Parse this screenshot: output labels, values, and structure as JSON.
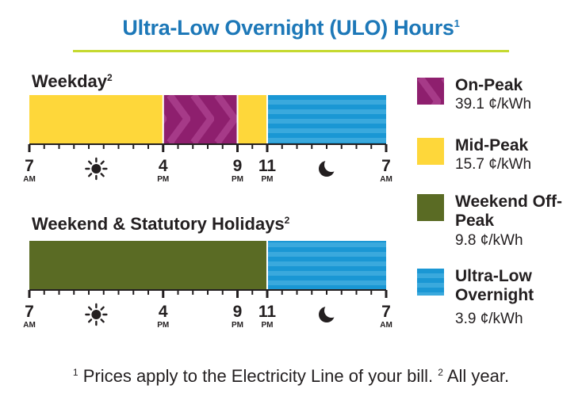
{
  "title": "Ultra-Low Overnight (ULO) Hours",
  "title_note": "1",
  "colors": {
    "on_peak": "#8e1f6e",
    "mid_peak": "#fed73a",
    "weekend_off_peak": "#5a6b24",
    "ultra_low": "#1a97d4",
    "title": "#1d78b8",
    "rule": "#c5d930"
  },
  "sections": {
    "weekday": {
      "title": "Weekday",
      "note": "2"
    },
    "weekend": {
      "title": "Weekend & Statutory Holidays",
      "note": "2"
    }
  },
  "legend": [
    {
      "label": "On-Peak",
      "price": "39.1 ¢/kWh",
      "color_key": "on_peak"
    },
    {
      "label": "Mid-Peak",
      "price": "15.7 ¢/kWh",
      "color_key": "mid_peak"
    },
    {
      "label": "Weekend Off-Peak",
      "price": "9.8 ¢/kWh",
      "color_key": "weekend_off_peak"
    },
    {
      "label": "Ultra-Low Overnight",
      "price": "3.9 ¢/kWh",
      "color_key": "ultra_low"
    }
  ],
  "footnote": {
    "note1_mark": "1",
    "note1_text": "Prices apply to the Electricity Line of your bill.",
    "note2_mark": "2",
    "note2_text": "All year."
  },
  "chart_data": {
    "type": "bar",
    "x_unit": "hours from 7 AM",
    "x_range": [
      0,
      24
    ],
    "timelines": [
      {
        "name": "Weekday",
        "segments": [
          {
            "start": 0,
            "end": 9,
            "period": "Mid-Peak",
            "color_key": "mid_peak"
          },
          {
            "start": 9,
            "end": 14,
            "period": "On-Peak",
            "color_key": "on_peak"
          },
          {
            "start": 14,
            "end": 16,
            "period": "Mid-Peak",
            "color_key": "mid_peak"
          },
          {
            "start": 16,
            "end": 24,
            "period": "Ultra-Low Overnight",
            "color_key": "ultra_low"
          }
        ]
      },
      {
        "name": "Weekend & Statutory Holidays",
        "segments": [
          {
            "start": 0,
            "end": 16,
            "period": "Weekend Off-Peak",
            "color_key": "weekend_off_peak"
          },
          {
            "start": 16,
            "end": 24,
            "period": "Ultra-Low Overnight",
            "color_key": "ultra_low"
          }
        ]
      }
    ],
    "tick_labels": [
      {
        "hour": 0,
        "label": "7",
        "sub": "AM"
      },
      {
        "hour": 9,
        "label": "4",
        "sub": "PM"
      },
      {
        "hour": 14,
        "label": "9",
        "sub": "PM"
      },
      {
        "hour": 16,
        "label": "11",
        "sub": "PM"
      },
      {
        "hour": 24,
        "label": "7",
        "sub": "AM"
      }
    ],
    "icons": [
      {
        "hour": 4.5,
        "name": "sun-icon"
      },
      {
        "hour": 20,
        "name": "moon-icon"
      }
    ]
  }
}
